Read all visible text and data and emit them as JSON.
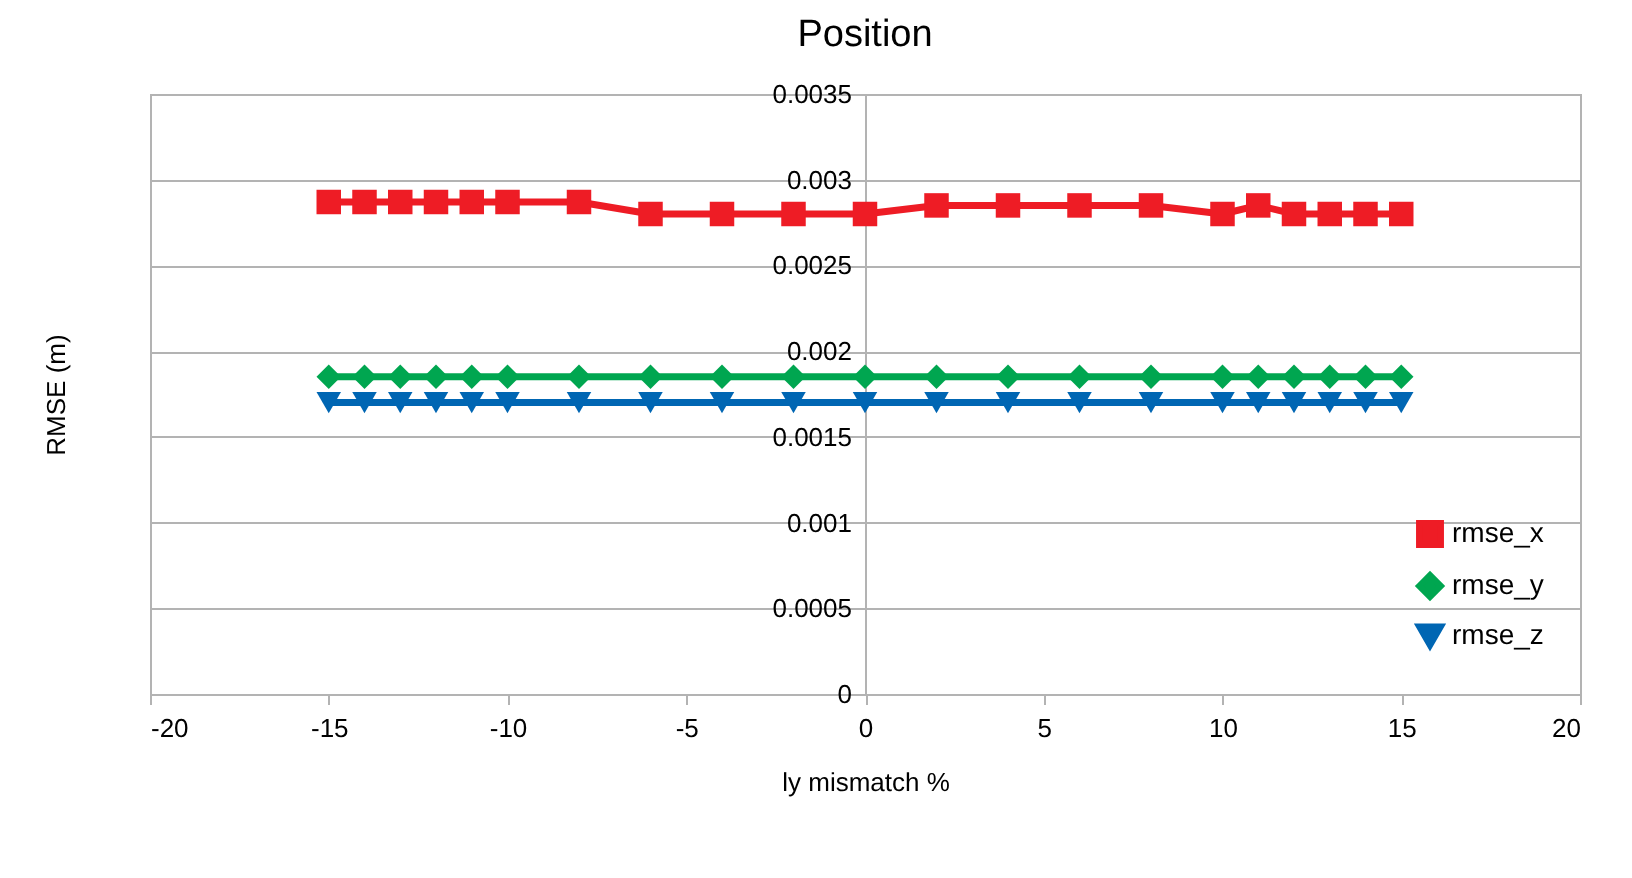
{
  "chart_data": {
    "type": "line",
    "title": "Position",
    "xlabel": "ly mismatch %",
    "ylabel": "RMSE (m)",
    "x": [
      -15,
      -14,
      -13,
      -12,
      -11,
      -10,
      -8,
      -6,
      -4,
      -2,
      0,
      2,
      4,
      6,
      8,
      10,
      11,
      12,
      13,
      14,
      15
    ],
    "series": [
      {
        "name": "rmse_x",
        "color": "#ee1c25",
        "marker": "square",
        "values": [
          0.00287,
          0.00287,
          0.00287,
          0.00287,
          0.00287,
          0.00287,
          0.00287,
          0.0028,
          0.0028,
          0.0028,
          0.0028,
          0.00285,
          0.00285,
          0.00285,
          0.00285,
          0.0028,
          0.00285,
          0.0028,
          0.0028,
          0.0028,
          0.0028
        ]
      },
      {
        "name": "rmse_y",
        "color": "#00a650",
        "marker": "diamond",
        "values": [
          0.00185,
          0.00185,
          0.00185,
          0.00185,
          0.00185,
          0.00185,
          0.00185,
          0.00185,
          0.00185,
          0.00185,
          0.00185,
          0.00185,
          0.00185,
          0.00185,
          0.00185,
          0.00185,
          0.00185,
          0.00185,
          0.00185,
          0.00185,
          0.00185
        ]
      },
      {
        "name": "rmse_z",
        "color": "#0066b3",
        "marker": "triangle-down",
        "values": [
          0.0017,
          0.0017,
          0.0017,
          0.0017,
          0.0017,
          0.0017,
          0.0017,
          0.0017,
          0.0017,
          0.0017,
          0.0017,
          0.0017,
          0.0017,
          0.0017,
          0.0017,
          0.0017,
          0.0017,
          0.0017,
          0.0017,
          0.0017,
          0.0017
        ]
      }
    ],
    "xlim": [
      -20,
      20
    ],
    "xticks": [
      -20,
      -15,
      -10,
      -5,
      0,
      5,
      10,
      15,
      20
    ],
    "ylim": [
      0,
      0.0035
    ],
    "yticks": [
      0,
      0.0005,
      0.001,
      0.0015,
      0.002,
      0.0025,
      0.003,
      0.0035
    ],
    "grid": "y",
    "legend": "bottom right",
    "line_style": "solid"
  }
}
